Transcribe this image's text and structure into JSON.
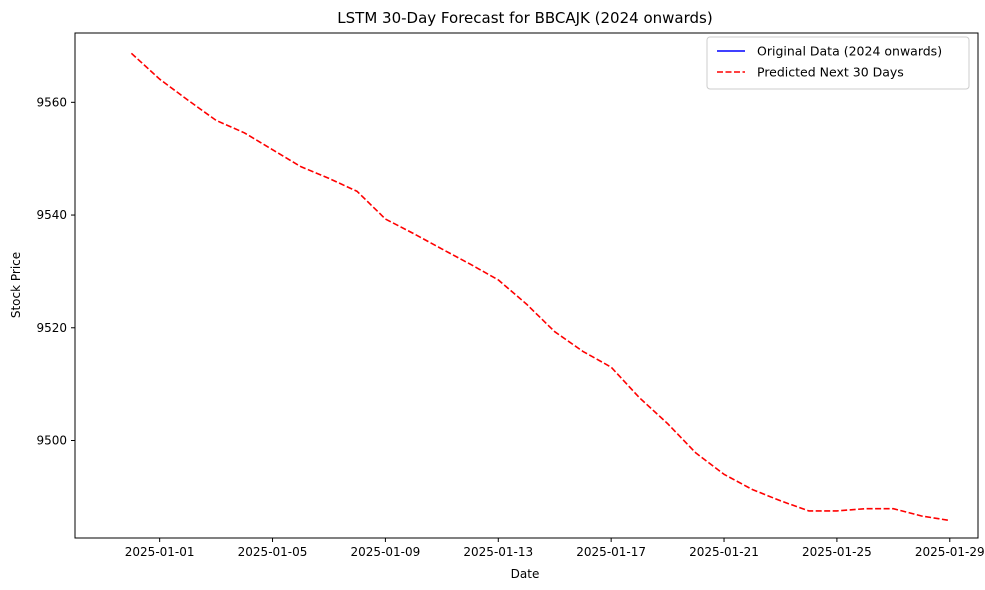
{
  "chart_data": {
    "type": "line",
    "title": "LSTM 30-Day Forecast for BBCAJK (2024 onwards)",
    "xlabel": "Date",
    "ylabel": "Stock Price",
    "x_type": "date",
    "xlim": [
      "2024-12-29",
      "2025-01-30"
    ],
    "ylim": [
      9482.7,
      9572.3
    ],
    "x_ticks": [
      "2025-01-01",
      "2025-01-05",
      "2025-01-09",
      "2025-01-13",
      "2025-01-17",
      "2025-01-21",
      "2025-01-25",
      "2025-01-29"
    ],
    "y_ticks": [
      9500,
      9520,
      9540,
      9560
    ],
    "grid": false,
    "legend_position": "top-right",
    "series": [
      {
        "name": "Original Data (2024 onwards)",
        "color": "#0000ff",
        "style": "solid",
        "x": [],
        "y": []
      },
      {
        "name": "Predicted Next 30 Days",
        "color": "#ff0000",
        "style": "dashed",
        "x": [
          "2024-12-31",
          "2025-01-01",
          "2025-01-02",
          "2025-01-03",
          "2025-01-04",
          "2025-01-05",
          "2025-01-06",
          "2025-01-07",
          "2025-01-08",
          "2025-01-09",
          "2025-01-10",
          "2025-01-11",
          "2025-01-12",
          "2025-01-13",
          "2025-01-14",
          "2025-01-15",
          "2025-01-16",
          "2025-01-17",
          "2025-01-18",
          "2025-01-19",
          "2025-01-20",
          "2025-01-21",
          "2025-01-22",
          "2025-01-23",
          "2025-01-24",
          "2025-01-25",
          "2025-01-26",
          "2025-01-27",
          "2025-01-28",
          "2025-01-29"
        ],
        "y": [
          9568.7,
          9564.1,
          9560.4,
          9556.8,
          9554.6,
          9551.6,
          9548.6,
          9546.5,
          9544.2,
          9539.3,
          9536.7,
          9534.0,
          9531.3,
          9528.5,
          9524.2,
          9519.3,
          9515.8,
          9513.0,
          9507.6,
          9503.0,
          9497.8,
          9494.0,
          9491.3,
          9489.3,
          9487.5,
          9487.5,
          9487.9,
          9487.9,
          9486.6,
          9485.8
        ]
      }
    ]
  }
}
